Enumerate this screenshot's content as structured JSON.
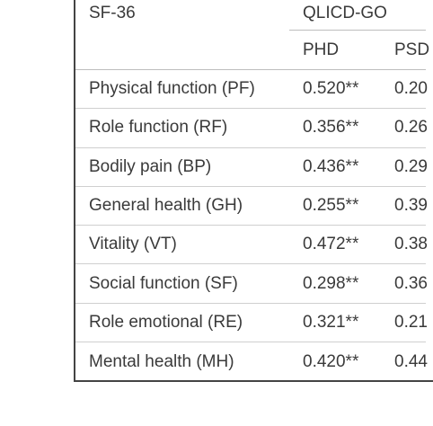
{
  "table": {
    "header": {
      "col1": "SF-36",
      "group": "QLICD-GO",
      "sub1": "PHD",
      "sub2": "PSD"
    },
    "rows": [
      {
        "label": "Physical function (PF)",
        "phd": "0.520**",
        "psd": "0.20"
      },
      {
        "label": "Role function (RF)",
        "phd": "0.356**",
        "psd": "0.26"
      },
      {
        "label": "Bodily pain (BP)",
        "phd": "0.436**",
        "psd": "0.29"
      },
      {
        "label": "General health (GH)",
        "phd": "0.255**",
        "psd": "0.39"
      },
      {
        "label": "Vitality (VT)",
        "phd": "0.472**",
        "psd": "0.38"
      },
      {
        "label": "Social function (SF)",
        "phd": "0.298**",
        "psd": "0.36"
      },
      {
        "label": "Role emotional  (RE)",
        "phd": "0.321**",
        "psd": "0.21"
      },
      {
        "label": "Mental health (MH)",
        "phd": "0.420**",
        "psd": "0.44"
      }
    ]
  }
}
